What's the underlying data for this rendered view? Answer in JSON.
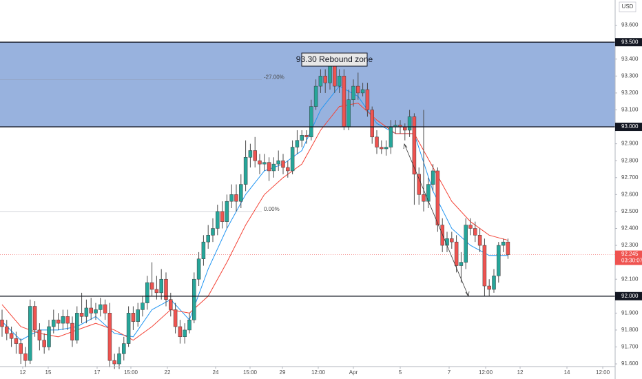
{
  "chart_data": {
    "type": "candlestick",
    "currency": "USD",
    "ylim": [
      91.584,
      93.749
    ],
    "yticks": [
      {
        "value": 91.6,
        "label": "91.600"
      },
      {
        "value": 91.7,
        "label": "91.700"
      },
      {
        "value": 91.8,
        "label": "91.800"
      },
      {
        "value": 91.9,
        "label": "91.900"
      },
      {
        "value": 92.1,
        "label": "92.100"
      },
      {
        "value": 92.3,
        "label": "92.300"
      },
      {
        "value": 92.4,
        "label": "92.400"
      },
      {
        "value": 92.5,
        "label": "92.500"
      },
      {
        "value": 92.6,
        "label": "92.600"
      },
      {
        "value": 92.7,
        "label": "92.700"
      },
      {
        "value": 92.8,
        "label": "92.800"
      },
      {
        "value": 92.9,
        "label": "92.900"
      },
      {
        "value": 93.1,
        "label": "93.100"
      },
      {
        "value": 93.2,
        "label": "93.200"
      },
      {
        "value": 93.3,
        "label": "93.300"
      },
      {
        "value": 93.4,
        "label": "93.400"
      },
      {
        "value": 93.6,
        "label": "93.600"
      }
    ],
    "xlim": [
      -0.44,
      130.88
    ],
    "xticks": [
      {
        "value": 4.41,
        "label": "12"
      },
      {
        "value": 9.85,
        "label": "15"
      },
      {
        "value": 20.29,
        "label": "17"
      },
      {
        "value": 27.5,
        "label": "15:00"
      },
      {
        "value": 35.29,
        "label": "22"
      },
      {
        "value": 45.59,
        "label": "24"
      },
      {
        "value": 52.94,
        "label": "15:00"
      },
      {
        "value": 59.85,
        "label": "29"
      },
      {
        "value": 67.5,
        "label": "12:00"
      },
      {
        "value": 75,
        "label": "Apr"
      },
      {
        "value": 85,
        "label": "5"
      },
      {
        "value": 95.44,
        "label": "7"
      },
      {
        "value": 103.24,
        "label": "12:00"
      },
      {
        "value": 110.59,
        "label": "12"
      },
      {
        "value": 120.59,
        "label": "14"
      },
      {
        "value": 128.24,
        "label": "12:00"
      }
    ],
    "up_color": "#26a69a",
    "down_color": "#ef5350",
    "open": [
      91.86,
      91.82,
      91.78,
      91.75,
      91.72,
      91.66,
      91.62,
      91.94,
      91.8,
      91.74,
      91.7,
      91.82,
      91.86,
      91.84,
      91.88,
      91.84,
      91.74,
      91.9,
      91.88,
      91.93,
      91.9,
      91.92,
      91.95,
      91.9,
      91.62,
      91.6,
      91.66,
      91.72,
      91.9,
      91.85,
      91.92,
      91.96,
      92.08,
      92.04,
      92.02,
      92.1,
      91.98,
      91.92,
      91.82,
      91.76,
      91.8,
      91.86,
      92.1,
      92.22,
      92.32,
      92.36,
      92.4,
      92.5,
      92.44,
      92.56,
      92.6,
      92.56,
      92.66,
      92.82,
      92.86,
      92.8,
      92.78,
      92.79,
      92.74,
      92.78,
      92.8,
      92.76,
      92.74,
      92.88,
      92.92,
      92.95,
      92.94,
      93.12,
      93.24,
      93.3,
      93.26,
      93.38,
      93.24,
      93.3,
      93.0,
      93.16,
      93.24,
      93.2,
      93.22,
      93.1,
      92.94,
      92.88,
      92.87,
      92.88,
      93.0,
      93.01,
      93.0,
      92.98,
      93.06,
      92.72,
      92.6,
      92.56,
      92.66,
      92.74,
      92.42,
      92.3,
      92.34,
      92.32,
      92.18,
      92.2,
      92.42,
      92.4,
      92.36,
      92.3,
      92.06,
      92.04,
      92.12,
      92.3,
      92.32
    ],
    "high": [
      91.92,
      91.86,
      91.82,
      91.79,
      91.75,
      91.7,
      91.98,
      91.97,
      91.84,
      91.78,
      91.86,
      91.92,
      91.9,
      91.92,
      91.92,
      91.88,
      91.94,
      92.02,
      91.98,
      91.99,
      91.96,
      91.99,
      91.98,
      91.96,
      91.66,
      91.7,
      91.76,
      91.94,
      91.94,
      91.96,
      92.0,
      92.12,
      92.2,
      92.12,
      92.16,
      92.14,
      92.02,
      91.96,
      91.86,
      91.84,
      91.9,
      92.14,
      92.26,
      92.36,
      92.42,
      92.46,
      92.54,
      92.56,
      92.6,
      92.66,
      92.66,
      92.72,
      92.92,
      92.9,
      92.94,
      92.84,
      92.84,
      92.82,
      92.82,
      92.86,
      92.84,
      92.8,
      92.92,
      92.98,
      92.98,
      92.98,
      93.16,
      93.28,
      93.34,
      93.34,
      93.42,
      93.4,
      93.34,
      93.34,
      93.22,
      93.28,
      93.32,
      93.26,
      93.26,
      93.12,
      92.98,
      92.92,
      92.92,
      93.04,
      93.04,
      93.04,
      93.02,
      93.1,
      93.08,
      92.76,
      93.1,
      92.7,
      92.78,
      92.76,
      92.46,
      92.38,
      92.38,
      92.36,
      92.26,
      92.46,
      92.46,
      92.44,
      92.4,
      92.34,
      92.1,
      92.16,
      92.32,
      92.34,
      92.34
    ],
    "low": [
      91.76,
      91.74,
      91.7,
      91.66,
      91.6,
      91.58,
      91.6,
      91.76,
      91.68,
      91.66,
      91.68,
      91.78,
      91.8,
      91.8,
      91.8,
      91.7,
      91.72,
      91.84,
      91.84,
      91.86,
      91.86,
      91.88,
      91.86,
      91.58,
      91.57,
      91.57,
      91.62,
      91.7,
      91.8,
      91.82,
      91.88,
      91.92,
      92.0,
      91.98,
      91.98,
      91.94,
      91.88,
      91.78,
      91.72,
      91.72,
      91.78,
      91.84,
      92.06,
      92.18,
      92.28,
      92.32,
      92.36,
      92.4,
      92.4,
      92.52,
      92.5,
      92.52,
      92.62,
      92.76,
      92.76,
      92.72,
      92.74,
      92.68,
      92.7,
      92.74,
      92.72,
      92.7,
      92.72,
      92.84,
      92.88,
      92.9,
      92.92,
      93.1,
      93.2,
      93.2,
      93.22,
      93.2,
      93.2,
      92.98,
      92.98,
      93.12,
      93.16,
      93.18,
      93.06,
      92.9,
      92.84,
      92.84,
      92.83,
      92.84,
      92.96,
      92.96,
      92.92,
      92.94,
      92.54,
      92.54,
      92.5,
      92.52,
      92.62,
      92.38,
      92.26,
      92.26,
      92.28,
      92.14,
      92.08,
      92.16,
      92.36,
      92.32,
      92.26,
      92.0,
      92.0,
      92.02,
      92.08,
      92.26,
      92.22
    ],
    "close": [
      91.82,
      91.78,
      91.75,
      91.72,
      91.66,
      91.62,
      91.94,
      91.8,
      91.74,
      91.7,
      91.82,
      91.86,
      91.84,
      91.88,
      91.84,
      91.74,
      91.9,
      91.88,
      91.93,
      91.9,
      91.92,
      91.95,
      91.9,
      91.62,
      91.6,
      91.66,
      91.72,
      91.9,
      91.85,
      91.92,
      91.96,
      92.08,
      92.04,
      92.02,
      92.1,
      91.98,
      91.92,
      91.82,
      91.76,
      91.8,
      91.86,
      92.1,
      92.22,
      92.32,
      92.36,
      92.4,
      92.5,
      92.44,
      92.56,
      92.6,
      92.56,
      92.66,
      92.82,
      92.86,
      92.8,
      92.78,
      92.79,
      92.74,
      92.78,
      92.8,
      92.76,
      92.74,
      92.88,
      92.92,
      92.95,
      92.94,
      93.12,
      93.24,
      93.3,
      93.26,
      93.38,
      93.24,
      93.3,
      93.0,
      93.16,
      93.24,
      93.2,
      93.22,
      93.1,
      92.94,
      92.88,
      92.87,
      92.88,
      93.0,
      93.01,
      93.0,
      92.98,
      93.06,
      92.72,
      92.6,
      92.56,
      92.66,
      92.74,
      92.42,
      92.3,
      92.34,
      92.32,
      92.18,
      92.2,
      92.42,
      92.4,
      92.36,
      92.3,
      92.06,
      92.04,
      92.12,
      92.3,
      92.32,
      92.245
    ],
    "series": [
      {
        "color": "#2196f3",
        "x": [
          0,
          4,
          8,
          12,
          16,
          20,
          24,
          28,
          32,
          36,
          40,
          44,
          48,
          52,
          56,
          60,
          64,
          68,
          72,
          76,
          80,
          84,
          88,
          92,
          96,
          100,
          104,
          108
        ],
        "values": [
          91.85,
          91.74,
          91.8,
          91.8,
          91.82,
          91.88,
          91.78,
          91.76,
          91.92,
          91.98,
          91.86,
          92.16,
          92.4,
          92.6,
          92.74,
          92.78,
          92.86,
          93.1,
          93.24,
          93.18,
          93.02,
          92.96,
          92.96,
          92.62,
          92.4,
          92.3,
          92.24,
          92.24
        ]
      },
      {
        "color": "#f44336",
        "x": [
          0,
          4,
          8,
          12,
          16,
          20,
          24,
          28,
          32,
          36,
          40,
          44,
          48,
          52,
          56,
          60,
          64,
          68,
          72,
          76,
          80,
          84,
          88,
          92,
          96,
          100,
          104,
          108
        ],
        "values": [
          91.95,
          91.82,
          91.78,
          91.76,
          91.8,
          91.84,
          91.8,
          91.74,
          91.82,
          91.92,
          91.9,
          92.0,
          92.2,
          92.42,
          92.6,
          92.7,
          92.78,
          92.98,
          93.12,
          93.14,
          93.04,
          92.96,
          92.96,
          92.76,
          92.56,
          92.44,
          92.36,
          92.33
        ]
      }
    ],
    "zone": [
      93.0,
      93.5
    ],
    "zone_color": "#98b2de",
    "levels": [
      {
        "value": 93.5,
        "label": "93.500"
      },
      {
        "value": 93.0,
        "label": "93.000"
      },
      {
        "value": 92.0,
        "label": "92.000"
      }
    ],
    "fib_levels": [
      {
        "price": 93.28,
        "text": "-27.00%"
      },
      {
        "price": 92.5,
        "text": "0.00%"
      }
    ],
    "last_price": {
      "value": 92.245,
      "label": "92.245",
      "countdown": "03:30:07"
    },
    "annotation": "93.30 Rebound zone"
  }
}
